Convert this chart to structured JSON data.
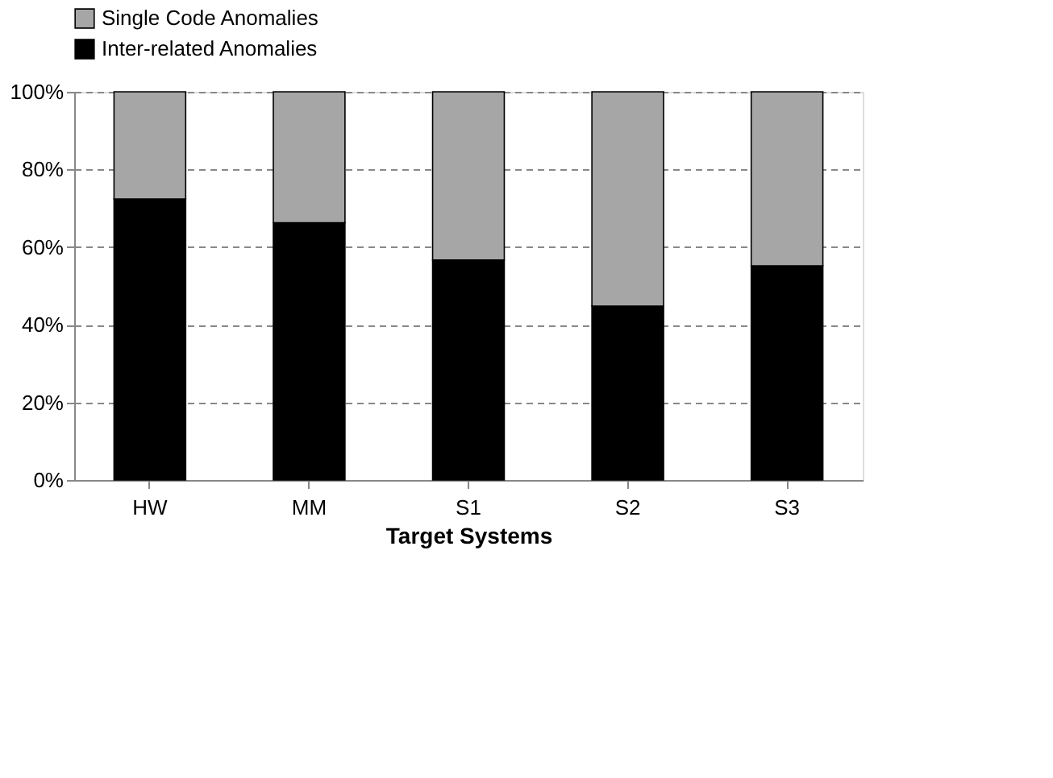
{
  "chart_data": {
    "type": "bar",
    "stacked": true,
    "xlabel": "Target Systems",
    "categories": [
      "HW",
      "MM",
      "S1",
      "S2",
      "S3"
    ],
    "series": [
      {
        "name": "Inter-related Anomalies",
        "color": "#000000",
        "values": [
          72.4,
          66.3,
          56.7,
          44.8,
          55.2
        ]
      },
      {
        "name": "Single Code Anomalies",
        "color": "#a6a6a6",
        "values": [
          27.6,
          33.7,
          43.3,
          55.2,
          44.8
        ]
      }
    ],
    "ylim": [
      0,
      100
    ],
    "yticks": [
      {
        "value": 0,
        "label": "0%"
      },
      {
        "value": 20,
        "label": "20%"
      },
      {
        "value": 40,
        "label": "40%"
      },
      {
        "value": 60,
        "label": "60%"
      },
      {
        "value": 80,
        "label": "80%"
      },
      {
        "value": 100,
        "label": "100%"
      }
    ],
    "grid": "y",
    "legend": "top"
  }
}
